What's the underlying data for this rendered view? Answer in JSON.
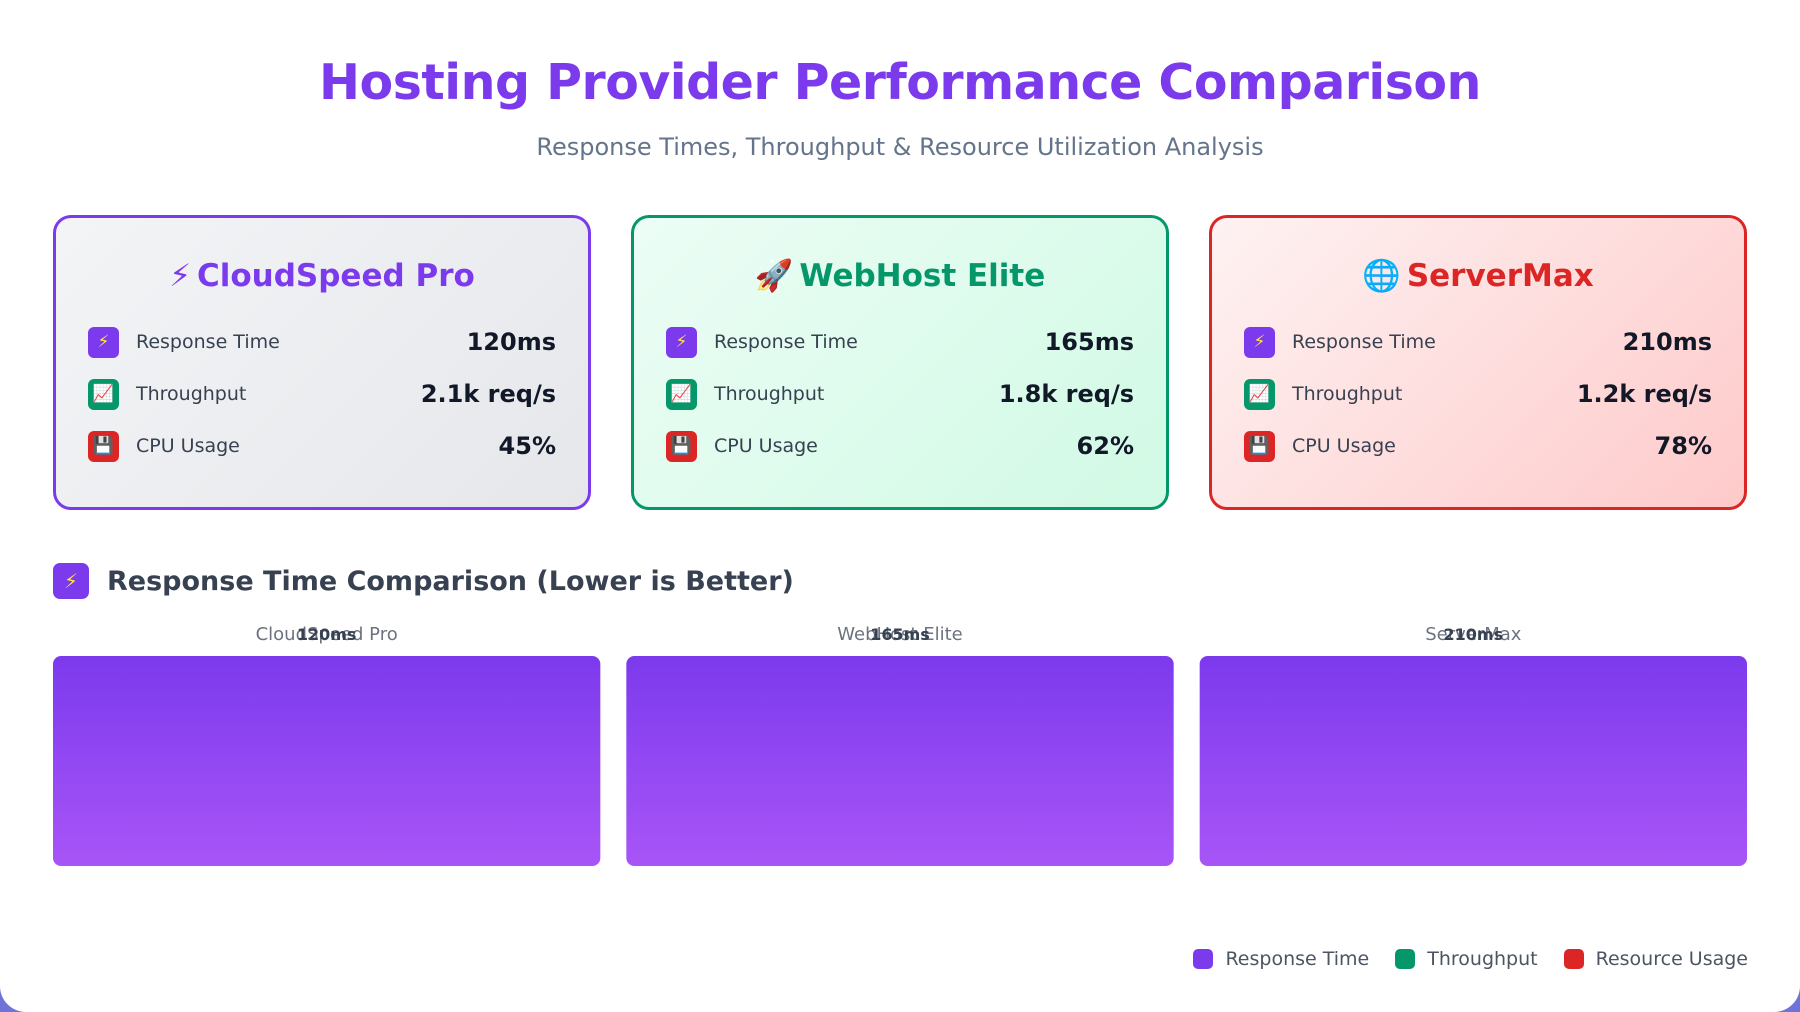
{
  "header": {
    "title": "Hosting Provider Performance Comparison",
    "subtitle": "Response Times, Throughput & Resource Utilization Analysis"
  },
  "providers": [
    {
      "name": "CloudSpeed Pro",
      "icon": "lightning-icon",
      "glyph": "⚡",
      "accent": "#7c3aed",
      "metrics": [
        {
          "label": "Response Time",
          "value": "120ms",
          "icon": "lightning-icon",
          "glyph": "⚡"
        },
        {
          "label": "Throughput",
          "value": "2.1k req/s",
          "icon": "chart-up-icon",
          "glyph": "📈"
        },
        {
          "label": "CPU Usage",
          "value": "45%",
          "icon": "floppy-disk-icon",
          "glyph": "💾"
        }
      ]
    },
    {
      "name": "WebHost Elite",
      "icon": "rocket-icon",
      "glyph": "🚀",
      "accent": "#059669",
      "metrics": [
        {
          "label": "Response Time",
          "value": "165ms",
          "icon": "lightning-icon",
          "glyph": "⚡"
        },
        {
          "label": "Throughput",
          "value": "1.8k req/s",
          "icon": "chart-up-icon",
          "glyph": "📈"
        },
        {
          "label": "CPU Usage",
          "value": "62%",
          "icon": "floppy-disk-icon",
          "glyph": "💾"
        }
      ]
    },
    {
      "name": "ServerMax",
      "icon": "globe-icon",
      "glyph": "🌐",
      "accent": "#dc2626",
      "metrics": [
        {
          "label": "Response Time",
          "value": "210ms",
          "icon": "lightning-icon",
          "glyph": "⚡"
        },
        {
          "label": "Throughput",
          "value": "1.2k req/s",
          "icon": "chart-up-icon",
          "glyph": "📈"
        },
        {
          "label": "CPU Usage",
          "value": "78%",
          "icon": "floppy-disk-icon",
          "glyph": "💾"
        }
      ]
    }
  ],
  "section": {
    "title": "Response Time Comparison (Lower is Better)",
    "icon": "lightning-icon",
    "glyph": "⚡"
  },
  "chart_data": {
    "type": "bar",
    "title": "Response Time Comparison (Lower is Better)",
    "categories": [
      "CloudSpeed Pro",
      "WebHost Elite",
      "ServerMax"
    ],
    "values": [
      120,
      165,
      210
    ],
    "value_labels": [
      "120ms",
      "165ms",
      "210ms"
    ],
    "unit": "ms",
    "bar_color_top": "#7c3aed",
    "bar_color_bottom": "#a855f7",
    "grid": false,
    "legend_position": "bottom-right"
  },
  "legend": [
    {
      "label": "Response Time",
      "color": "#7c3aed"
    },
    {
      "label": "Throughput",
      "color": "#059669"
    },
    {
      "label": "Resource Usage",
      "color": "#dc2626"
    }
  ]
}
